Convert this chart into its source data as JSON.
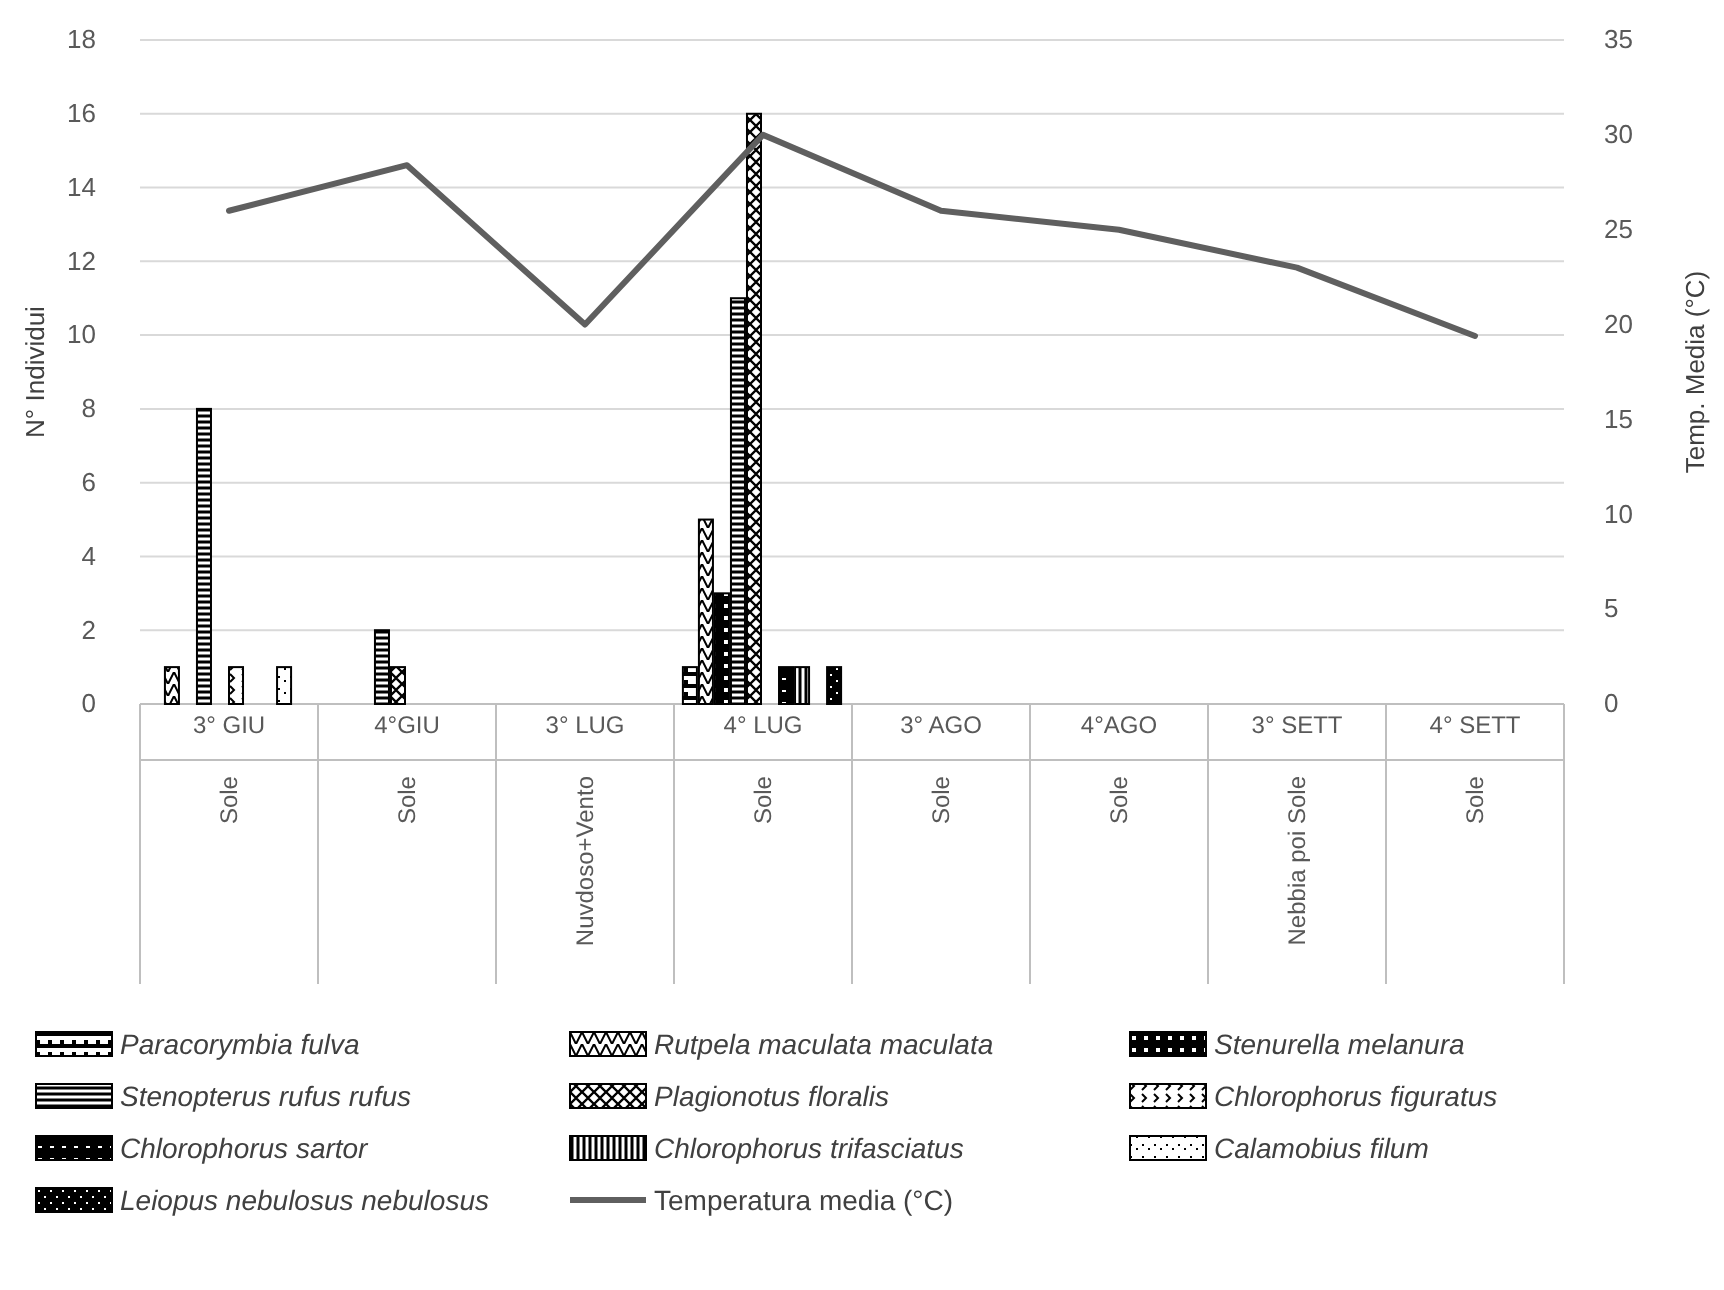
{
  "chart_data": {
    "type": "bar",
    "ylabel": "N° Individui",
    "y2label": "Temp. Media (°C)",
    "categories": [
      "3° GIU",
      "4°GIU",
      "3° LUG",
      "4° LUG",
      "3° AGO",
      "4°AGO",
      "3° SETT",
      "4° SETT"
    ],
    "ylim": [
      0,
      18
    ],
    "yticks": [
      0,
      2,
      4,
      6,
      8,
      10,
      12,
      14,
      16,
      18
    ],
    "y2lim": [
      0,
      35
    ],
    "y2ticks": [
      0,
      5,
      10,
      15,
      20,
      25,
      30,
      35
    ],
    "grid": "y",
    "legend": "bottom",
    "annotations": [
      "Sole",
      "Sole",
      "Nuvdoso+Vento",
      "Sole",
      "Sole",
      "Sole",
      "Nebbia poi Sole",
      "Sole"
    ],
    "series": [
      {
        "name": "Paracorymbia fulva",
        "color": "#000000",
        "values": [
          0,
          0,
          0,
          1,
          0,
          0,
          0,
          0
        ]
      },
      {
        "name": "Rutpela maculata maculata",
        "color": "#000000",
        "values": [
          1,
          0,
          0,
          5,
          0,
          0,
          0,
          0
        ]
      },
      {
        "name": "Stenurella melanura",
        "color": "#000000",
        "values": [
          0,
          0,
          0,
          3,
          0,
          0,
          0,
          0
        ]
      },
      {
        "name": "Stenopterus rufus rufus",
        "color": "#000000",
        "values": [
          8,
          2,
          0,
          11,
          0,
          0,
          0,
          0
        ]
      },
      {
        "name": "Plagionotus floralis",
        "color": "#000000",
        "values": [
          0,
          1,
          0,
          16,
          0,
          0,
          0,
          0
        ]
      },
      {
        "name": "Chlorophorus figuratus",
        "color": "#000000",
        "values": [
          1,
          0,
          0,
          0,
          0,
          0,
          0,
          0
        ]
      },
      {
        "name": "Chlorophorus sartor",
        "color": "#000000",
        "values": [
          0,
          0,
          0,
          1,
          0,
          0,
          0,
          0
        ]
      },
      {
        "name": "Chlorophorus trifasciatus",
        "color": "#000000",
        "values": [
          0,
          0,
          0,
          1,
          0,
          0,
          0,
          0
        ]
      },
      {
        "name": "Calamobius filum",
        "color": "#000000",
        "values": [
          1,
          0,
          0,
          0,
          0,
          0,
          0,
          0
        ]
      },
      {
        "name": "Leiopus nebulosus nebulosus",
        "color": "#000000",
        "values": [
          0,
          0,
          0,
          1,
          0,
          0,
          0,
          0
        ]
      },
      {
        "name": "Temperatura media (°C)",
        "type": "line",
        "axis": "y2",
        "color": "#5f5f5f",
        "values": [
          26,
          28.4,
          20,
          30,
          26,
          25,
          23,
          19.4
        ]
      }
    ]
  }
}
